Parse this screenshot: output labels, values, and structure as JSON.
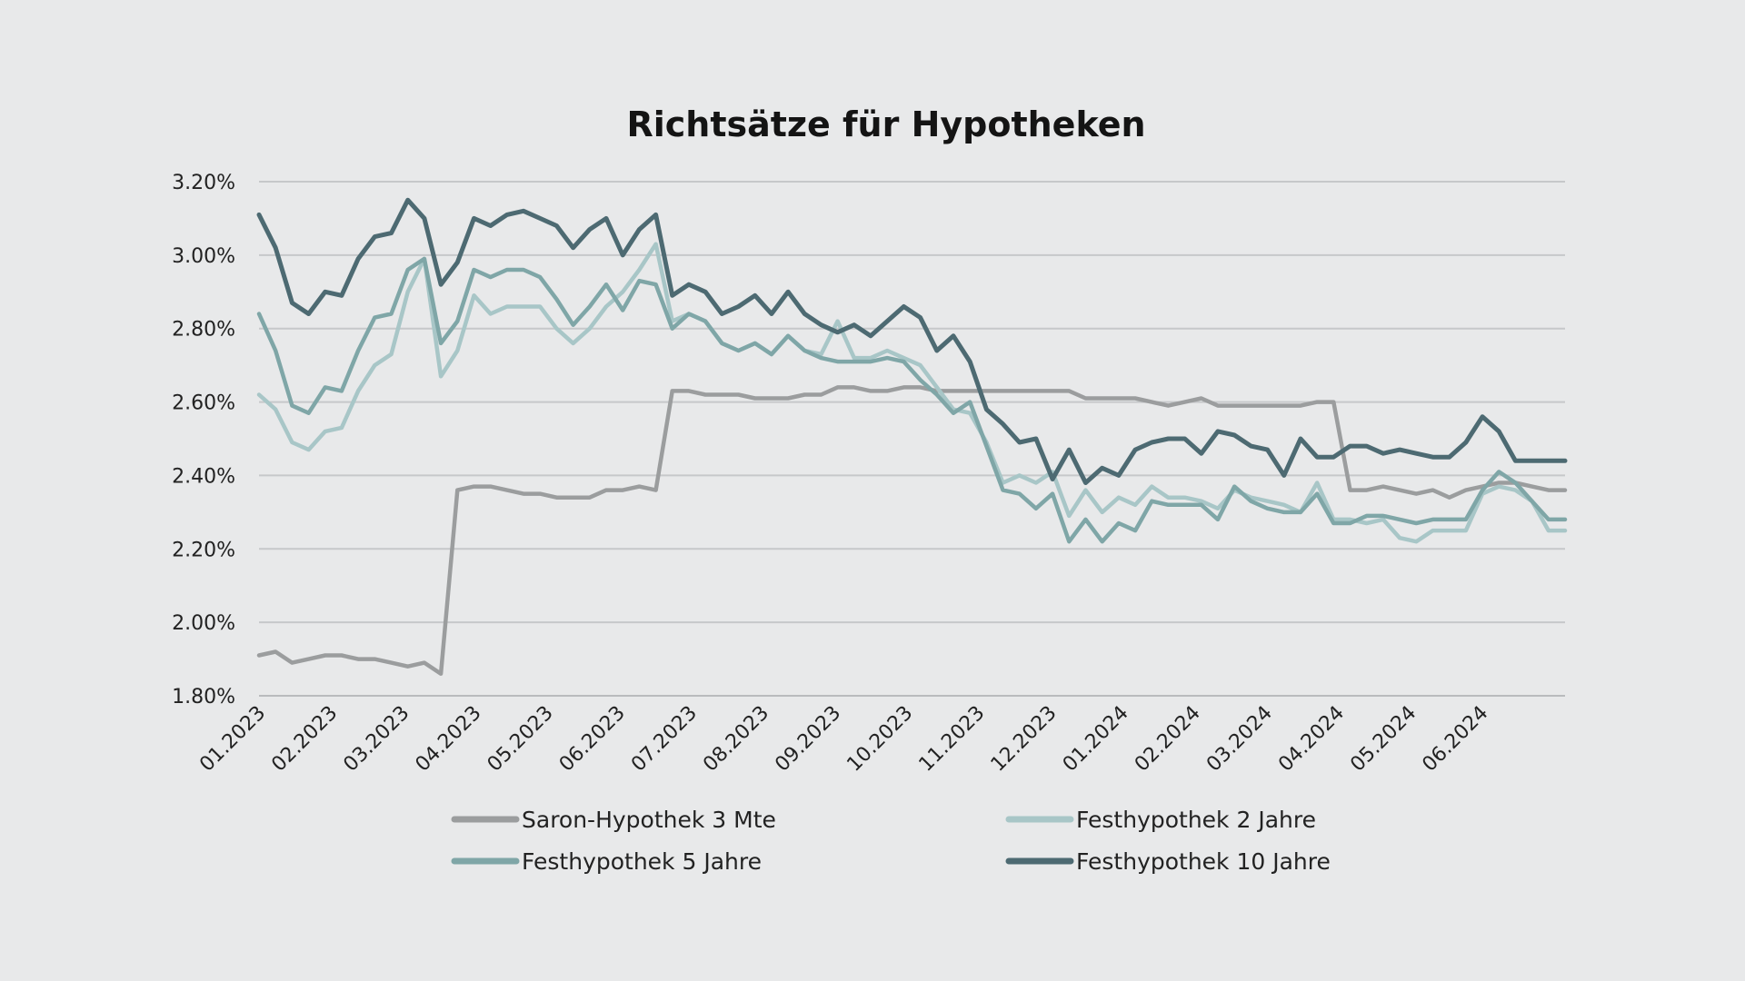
{
  "chart_data": {
    "type": "line",
    "title": "Richtsätze für Hypotheken",
    "xlabel": "",
    "ylabel": "",
    "ylim": [
      1.8,
      3.2
    ],
    "grid": true,
    "legend_position": "bottom",
    "y_ticks": [
      "1.80%",
      "2.00%",
      "2.20%",
      "2.40%",
      "2.60%",
      "2.80%",
      "3.00%",
      "3.20%"
    ],
    "x_ticks": [
      "01.2023",
      "02.2023",
      "03.2023",
      "04.2023",
      "05.2023",
      "06.2023",
      "07.2023",
      "08.2023",
      "09.2023",
      "10.2023",
      "11.2023",
      "12.2023",
      "01.2024",
      "02.2024",
      "03.2024",
      "04.2024",
      "05.2024",
      "06.2024"
    ],
    "series": [
      {
        "name": "Saron-Hypothek 3 Mte",
        "color": "#9b9d9e",
        "values": [
          1.91,
          1.92,
          1.89,
          1.9,
          1.91,
          1.91,
          1.9,
          1.9,
          1.89,
          1.88,
          1.89,
          1.86,
          2.36,
          2.37,
          2.37,
          2.36,
          2.35,
          2.35,
          2.34,
          2.34,
          2.34,
          2.36,
          2.36,
          2.37,
          2.36,
          2.63,
          2.63,
          2.62,
          2.62,
          2.62,
          2.61,
          2.61,
          2.61,
          2.62,
          2.62,
          2.64,
          2.64,
          2.63,
          2.63,
          2.64,
          2.64,
          2.63,
          2.63,
          2.63,
          2.63,
          2.63,
          2.63,
          2.63,
          2.63,
          2.63,
          2.61,
          2.61,
          2.61,
          2.61,
          2.6,
          2.59,
          2.6,
          2.61,
          2.59,
          2.59,
          2.59,
          2.59,
          2.59,
          2.59,
          2.6,
          2.6,
          2.36,
          2.36,
          2.37,
          2.36,
          2.35,
          2.36,
          2.34,
          2.36,
          2.37,
          2.38,
          2.38,
          2.37,
          2.36,
          2.36
        ]
      },
      {
        "name": "Festhypothek 2 Jahre",
        "color": "#a8c6c7",
        "values": [
          2.62,
          2.58,
          2.49,
          2.47,
          2.52,
          2.53,
          2.63,
          2.7,
          2.73,
          2.9,
          2.99,
          2.67,
          2.74,
          2.89,
          2.84,
          2.86,
          2.86,
          2.86,
          2.8,
          2.76,
          2.8,
          2.86,
          2.9,
          2.96,
          3.03,
          2.82,
          2.84,
          2.82,
          2.76,
          2.74,
          2.76,
          2.73,
          2.78,
          2.74,
          2.73,
          2.82,
          2.72,
          2.72,
          2.74,
          2.72,
          2.7,
          2.64,
          2.58,
          2.57,
          2.49,
          2.38,
          2.4,
          2.38,
          2.41,
          2.29,
          2.36,
          2.3,
          2.34,
          2.32,
          2.37,
          2.34,
          2.34,
          2.33,
          2.31,
          2.36,
          2.34,
          2.33,
          2.32,
          2.3,
          2.38,
          2.28,
          2.28,
          2.27,
          2.28,
          2.23,
          2.22,
          2.25,
          2.25,
          2.25,
          2.35,
          2.37,
          2.36,
          2.33,
          2.25,
          2.25
        ]
      },
      {
        "name": "Festhypothek 5 Jahre",
        "color": "#7fa6a7",
        "values": [
          2.84,
          2.74,
          2.59,
          2.57,
          2.64,
          2.63,
          2.74,
          2.83,
          2.84,
          2.96,
          2.99,
          2.76,
          2.82,
          2.96,
          2.94,
          2.96,
          2.96,
          2.94,
          2.88,
          2.81,
          2.86,
          2.92,
          2.85,
          2.93,
          2.92,
          2.8,
          2.84,
          2.82,
          2.76,
          2.74,
          2.76,
          2.73,
          2.78,
          2.74,
          2.72,
          2.71,
          2.71,
          2.71,
          2.72,
          2.71,
          2.66,
          2.62,
          2.57,
          2.6,
          2.48,
          2.36,
          2.35,
          2.31,
          2.35,
          2.22,
          2.28,
          2.22,
          2.27,
          2.25,
          2.33,
          2.32,
          2.32,
          2.32,
          2.28,
          2.37,
          2.33,
          2.31,
          2.3,
          2.3,
          2.35,
          2.27,
          2.27,
          2.29,
          2.29,
          2.28,
          2.27,
          2.28,
          2.28,
          2.28,
          2.36,
          2.41,
          2.38,
          2.33,
          2.28,
          2.28
        ]
      },
      {
        "name": "Festhypothek 10 Jahre",
        "color": "#4d6a72",
        "values": [
          3.11,
          3.02,
          2.87,
          2.84,
          2.9,
          2.89,
          2.99,
          3.05,
          3.06,
          3.15,
          3.1,
          2.92,
          2.98,
          3.1,
          3.08,
          3.11,
          3.12,
          3.1,
          3.08,
          3.02,
          3.07,
          3.1,
          3.0,
          3.07,
          3.11,
          2.89,
          2.92,
          2.9,
          2.84,
          2.86,
          2.89,
          2.84,
          2.9,
          2.84,
          2.81,
          2.79,
          2.81,
          2.78,
          2.82,
          2.86,
          2.83,
          2.74,
          2.78,
          2.71,
          2.58,
          2.54,
          2.49,
          2.5,
          2.39,
          2.47,
          2.38,
          2.42,
          2.4,
          2.47,
          2.49,
          2.5,
          2.5,
          2.46,
          2.52,
          2.51,
          2.48,
          2.47,
          2.4,
          2.5,
          2.45,
          2.45,
          2.48,
          2.48,
          2.46,
          2.47,
          2.46,
          2.45,
          2.45,
          2.49,
          2.56,
          2.52,
          2.44,
          2.44,
          2.44,
          2.44
        ]
      }
    ]
  }
}
